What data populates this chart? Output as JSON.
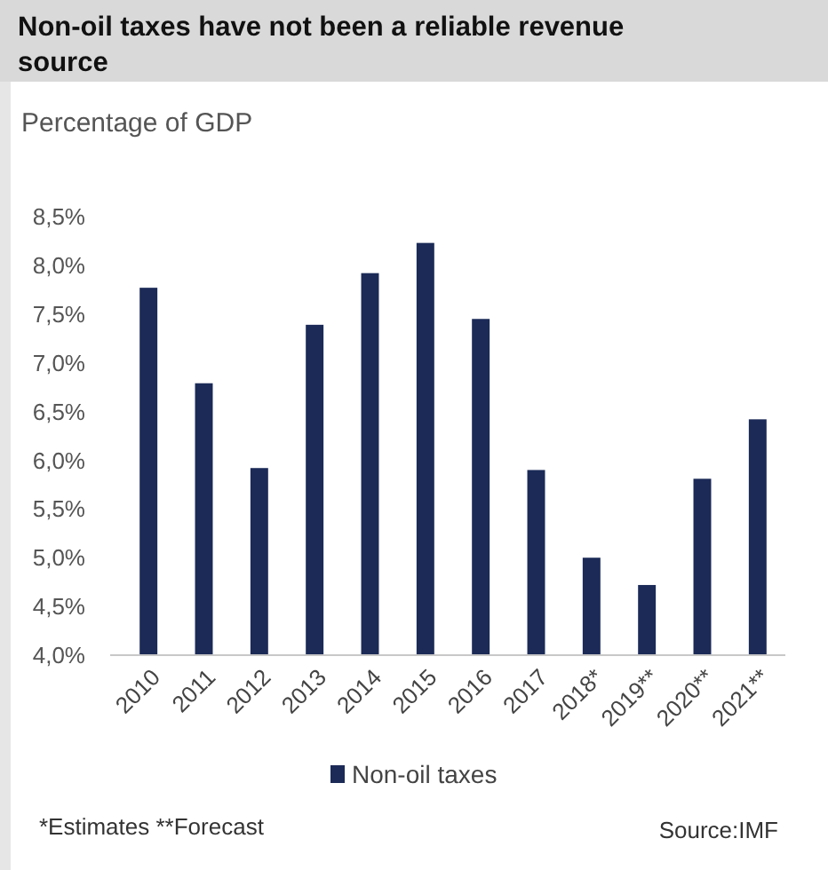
{
  "chart_data": {
    "type": "bar",
    "title": "Non-oil taxes have not been a reliable revenue source",
    "subtitle": "Percentage of GDP",
    "categories": [
      "2010",
      "2011",
      "2012",
      "2013",
      "2014",
      "2015",
      "2016",
      "2017",
      "2018*",
      "2019**",
      "2020**",
      "2021**"
    ],
    "series": [
      {
        "name": "Non-oil taxes",
        "color": "#1b2a57",
        "values": [
          7.77,
          6.79,
          5.92,
          7.39,
          7.92,
          8.23,
          7.45,
          5.9,
          5.0,
          4.72,
          5.81,
          6.42
        ]
      }
    ],
    "ylim": [
      4,
      8.5
    ],
    "yticks": [
      {
        "value": 4,
        "label": "4,0%"
      },
      {
        "value": 4.5,
        "label": "4,5%"
      },
      {
        "value": 5,
        "label": "5,0%"
      },
      {
        "value": 5.5,
        "label": "5,5%"
      },
      {
        "value": 6,
        "label": "6,0%"
      },
      {
        "value": 6.5,
        "label": "6,5%"
      },
      {
        "value": 7,
        "label": "7,0%"
      },
      {
        "value": 7.5,
        "label": "7,5%"
      },
      {
        "value": 8,
        "label": "8,0%"
      },
      {
        "value": 8.5,
        "label": "8,5%"
      }
    ],
    "grid": false,
    "legend": "bottom",
    "annotations": [
      "*Estimates **Forecast",
      "Source:IMF"
    ]
  }
}
